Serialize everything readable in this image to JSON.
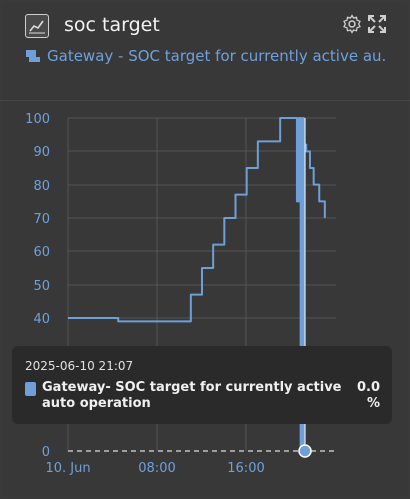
{
  "widget": {
    "title": "soc target",
    "subtitle": "Gateway - SOC target for currently active au...",
    "icons": [
      "chart-icon",
      "gear-icon",
      "expand-icon",
      "device-icon"
    ]
  },
  "tooltip": {
    "timestamp": "2025-06-10 21:07",
    "label": "Gateway- SOC target for currently active auto operation",
    "value": "0.0",
    "unit": "%"
  },
  "colors": {
    "line": "#6e9fd9",
    "background": "#383838",
    "grid": "#555555"
  },
  "chart_data": {
    "type": "line",
    "y_ticks": [
      "100",
      "90",
      "80",
      "70",
      "60",
      "50",
      "40",
      "0"
    ],
    "x_ticks": [
      "10. Jun",
      "08:00",
      "16:00"
    ],
    "ylim": [
      0,
      100
    ],
    "grid": true,
    "series": [
      {
        "name": "Gateway- SOC target for currently active auto operation",
        "x": [
          "00:00",
          "04:00",
          "04:30",
          "06:00",
          "10:00",
          "11:00",
          "12:00",
          "13:00",
          "14:00",
          "15:00",
          "16:00",
          "17:00",
          "18:00",
          "19:00",
          "20:00",
          "20:30",
          "20:40",
          "20:50",
          "21:00",
          "21:07",
          "21:10",
          "21:20",
          "21:40",
          "22:00",
          "22:30",
          "23:00"
        ],
        "values": [
          40,
          40,
          39,
          39,
          39,
          47,
          55,
          62,
          70,
          77,
          85,
          93,
          93,
          100,
          100,
          75,
          100,
          0,
          100,
          0,
          92,
          90,
          85,
          80,
          75,
          70
        ]
      }
    ]
  }
}
